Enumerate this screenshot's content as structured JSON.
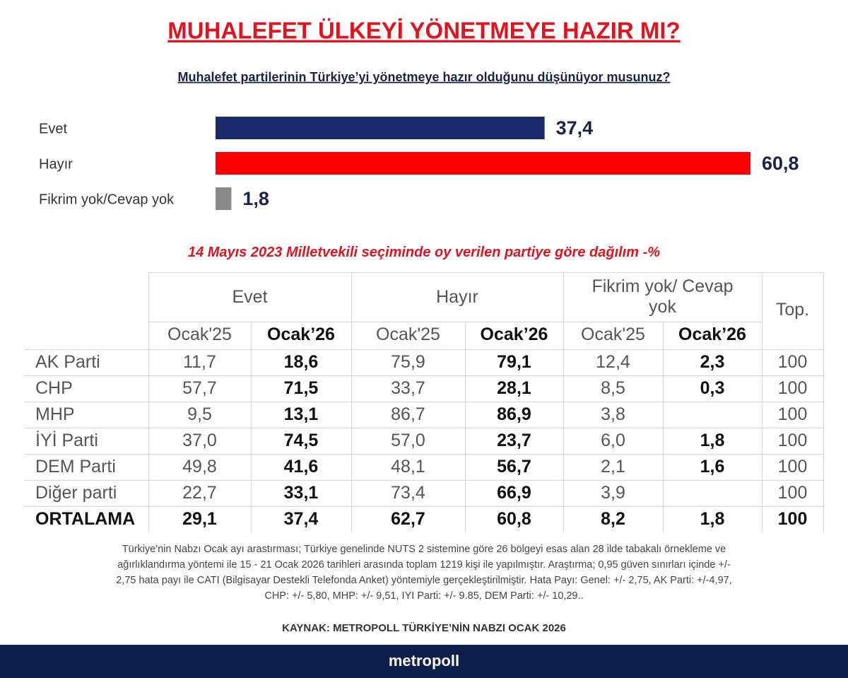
{
  "chart_data": {
    "type": "bar",
    "orientation": "horizontal",
    "title": "MUHALEFET ÜLKEYİ YÖNETMEYE HAZIR MI?",
    "subtitle": "Muhalefet partilerinin Türkiye’yi yönetmeye hazır olduğunu düşünüyor musunuz?",
    "categories": [
      "Evet",
      "Hayır",
      "Fikrim yok/Cevap yok"
    ],
    "values": [
      37.4,
      60.8,
      1.8
    ],
    "value_labels": [
      "37,4",
      "60,8",
      "1,8"
    ],
    "colors": [
      "#1b2a6b",
      "#ff0000",
      "#8a8a8a"
    ]
  },
  "table": {
    "title": "14 Mayıs 2023 Milletvekili seçiminde oy verilen partiye göre dağılım -%",
    "groups": [
      "Evet",
      "Hayır",
      "Fikrim yok/ Cevap yok",
      "Top."
    ],
    "subheaders": [
      "Ocak'25",
      "Ocak’26",
      "Ocak'25",
      "Ocak’26",
      "Ocak'25",
      "Ocak’26"
    ],
    "rows": [
      [
        "AK Parti",
        "11,7",
        "18,6",
        "75,9",
        "79,1",
        "12,4",
        "2,3",
        "100"
      ],
      [
        "CHP",
        "57,7",
        "71,5",
        "33,7",
        "28,1",
        "8,5",
        "0,3",
        "100"
      ],
      [
        "MHP",
        "9,5",
        "13,1",
        "86,7",
        "86,9",
        "3,8",
        null,
        "100"
      ],
      [
        "İYİ Parti",
        "37,0",
        "74,5",
        "57,0",
        "23,7",
        "6,0",
        "1,8",
        "100"
      ],
      [
        "DEM Parti",
        "49,8",
        "41,6",
        "48,1",
        "56,7",
        "2,1",
        "1,6",
        "100"
      ],
      [
        "Diğer parti",
        "22,7",
        "33,1",
        "73,4",
        "66,9",
        "3,9",
        null,
        "100"
      ],
      [
        "ORTALAMA",
        "29,1",
        "37,4",
        "62,7",
        "60,8",
        "8,2",
        "1,8",
        "100"
      ]
    ]
  },
  "footnote": [
    "Türkiye'nin Nabzı Ocak ayı arastırması; Türkiye genelinde NUTS 2 sistemine göre 26 bölgeyi esas alan 28 ilde tabakalı örnekleme ve",
    "ağırlıklandırma yöntemi ile 15 - 21 Ocak 2026 tarihleri arasında toplam 1219 kişi ile yapılmıştır. Araştırma; 0,95 güven sınırları içinde +/-",
    "2,75 hata payı ile CATI (Bilgisayar Destekli Telefonda Anket) yöntemiyle gerçekleştirilmiştir. Hata Payı: Genel: +/- 2,75, AK Parti: +/-4,97,",
    "CHP: +/- 5,80, MHP: +/- 9,51, IYI Parti: +/- 9.85, DEM Parti: +/- 10,29.."
  ],
  "source": "KAYNAK: METROPOLL TÜRKİYE’NİN NABZI OCAK 2026",
  "brand": "metropoll"
}
